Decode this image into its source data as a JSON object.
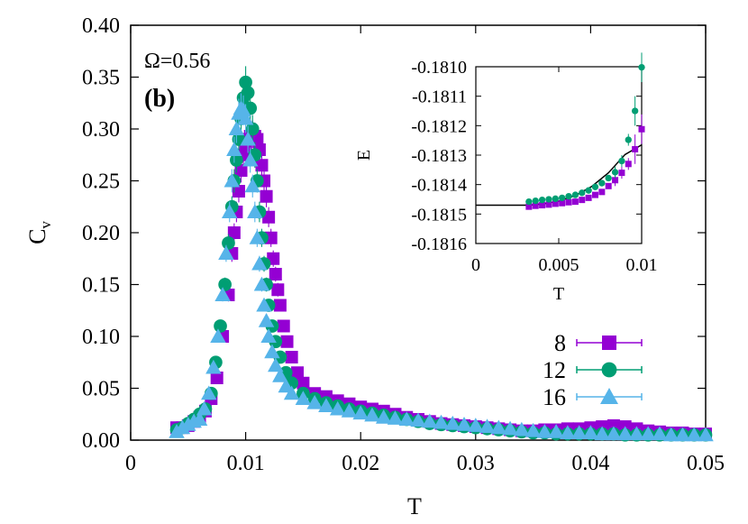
{
  "chart_data": [
    {
      "type": "scatter",
      "annotations": [
        "Ω=0.56",
        "(b)"
      ],
      "xlabel": "T",
      "ylabel": "C",
      "ylabel_sub": "v",
      "xlim": [
        0,
        0.05
      ],
      "ylim": [
        0,
        0.4
      ],
      "xticks": [
        "0",
        "0.01",
        "0.02",
        "0.03",
        "0.04",
        "0.05"
      ],
      "yticks": [
        "0.00",
        "0.05",
        "0.10",
        "0.15",
        "0.20",
        "0.25",
        "0.30",
        "0.35",
        "0.40"
      ],
      "legend_position": "bottom-right",
      "series": [
        {
          "name": "8",
          "color": "#9400d3",
          "marker": "square",
          "x": [
            0.004,
            0.0045,
            0.005,
            0.0055,
            0.006,
            0.0065,
            0.007,
            0.0075,
            0.008,
            0.0085,
            0.0088,
            0.009,
            0.0092,
            0.0094,
            0.0096,
            0.0098,
            0.01,
            0.0102,
            0.0104,
            0.0106,
            0.0108,
            0.011,
            0.0112,
            0.0114,
            0.0116,
            0.0118,
            0.012,
            0.0122,
            0.0124,
            0.0126,
            0.0128,
            0.013,
            0.0133,
            0.0136,
            0.014,
            0.0145,
            0.015,
            0.016,
            0.017,
            0.018,
            0.019,
            0.02,
            0.021,
            0.022,
            0.023,
            0.024,
            0.025,
            0.026,
            0.027,
            0.028,
            0.029,
            0.03,
            0.031,
            0.032,
            0.033,
            0.034,
            0.035,
            0.036,
            0.037,
            0.038,
            0.039,
            0.04,
            0.041,
            0.042,
            0.043,
            0.044,
            0.045,
            0.046,
            0.047,
            0.048,
            0.049,
            0.05
          ],
          "y": [
            0.012,
            0.012,
            0.014,
            0.018,
            0.022,
            0.028,
            0.04,
            0.06,
            0.1,
            0.14,
            0.18,
            0.2,
            0.22,
            0.24,
            0.26,
            0.275,
            0.285,
            0.29,
            0.293,
            0.295,
            0.293,
            0.29,
            0.28,
            0.265,
            0.25,
            0.235,
            0.215,
            0.195,
            0.175,
            0.16,
            0.145,
            0.13,
            0.11,
            0.095,
            0.08,
            0.065,
            0.055,
            0.045,
            0.042,
            0.038,
            0.035,
            0.032,
            0.03,
            0.028,
            0.025,
            0.022,
            0.02,
            0.018,
            0.016,
            0.015,
            0.014,
            0.013,
            0.012,
            0.011,
            0.01,
            0.009,
            0.009,
            0.01,
            0.01,
            0.011,
            0.011,
            0.012,
            0.013,
            0.014,
            0.013,
            0.011,
            0.009,
            0.008,
            0.007,
            0.007,
            0.006,
            0.006
          ]
        },
        {
          "name": "12",
          "color": "#009e73",
          "marker": "circle",
          "x": [
            0.004,
            0.0045,
            0.005,
            0.0055,
            0.006,
            0.0065,
            0.007,
            0.0074,
            0.0078,
            0.0082,
            0.0085,
            0.0088,
            0.009,
            0.0092,
            0.0094,
            0.0096,
            0.0098,
            0.01,
            0.0102,
            0.0104,
            0.0106,
            0.0108,
            0.011,
            0.0112,
            0.0114,
            0.0116,
            0.0118,
            0.012,
            0.0123,
            0.0126,
            0.013,
            0.0135,
            0.014,
            0.015,
            0.016,
            0.017,
            0.018,
            0.019,
            0.02,
            0.021,
            0.022,
            0.023,
            0.024,
            0.025,
            0.026,
            0.027,
            0.028,
            0.029,
            0.03,
            0.031,
            0.032,
            0.033,
            0.034,
            0.035,
            0.036,
            0.037,
            0.038,
            0.039,
            0.04,
            0.041,
            0.042,
            0.043,
            0.044,
            0.045,
            0.046,
            0.047,
            0.048,
            0.049,
            0.05
          ],
          "y": [
            0.01,
            0.012,
            0.016,
            0.02,
            0.025,
            0.03,
            0.045,
            0.075,
            0.11,
            0.15,
            0.19,
            0.225,
            0.25,
            0.27,
            0.29,
            0.31,
            0.33,
            0.345,
            0.335,
            0.32,
            0.3,
            0.275,
            0.25,
            0.22,
            0.195,
            0.17,
            0.15,
            0.13,
            0.11,
            0.095,
            0.08,
            0.065,
            0.055,
            0.045,
            0.04,
            0.036,
            0.033,
            0.03,
            0.028,
            0.026,
            0.024,
            0.022,
            0.02,
            0.018,
            0.016,
            0.015,
            0.014,
            0.013,
            0.012,
            0.011,
            0.01,
            0.009,
            0.008,
            0.007,
            0.007,
            0.006,
            0.006,
            0.006,
            0.006,
            0.006,
            0.006,
            0.005,
            0.005,
            0.005,
            0.005,
            0.005,
            0.005,
            0.005,
            0.005
          ]
        },
        {
          "name": "16",
          "color": "#56b4e9",
          "marker": "triangle",
          "x": [
            0.004,
            0.0045,
            0.005,
            0.0055,
            0.006,
            0.0064,
            0.0068,
            0.0072,
            0.0076,
            0.008,
            0.0083,
            0.0086,
            0.0088,
            0.009,
            0.0092,
            0.0094,
            0.0096,
            0.0098,
            0.01,
            0.0102,
            0.0104,
            0.0106,
            0.0108,
            0.011,
            0.0112,
            0.0114,
            0.0116,
            0.0118,
            0.012,
            0.0123,
            0.0126,
            0.013,
            0.0135,
            0.014,
            0.015,
            0.016,
            0.017,
            0.018,
            0.019,
            0.02,
            0.021,
            0.022,
            0.023,
            0.024,
            0.025,
            0.026,
            0.027,
            0.028,
            0.029,
            0.03,
            0.031,
            0.032,
            0.033,
            0.034,
            0.035,
            0.036,
            0.037,
            0.038,
            0.039,
            0.04,
            0.041,
            0.042,
            0.043,
            0.044,
            0.045,
            0.046,
            0.047,
            0.048,
            0.049,
            0.05
          ],
          "y": [
            0.008,
            0.012,
            0.015,
            0.018,
            0.02,
            0.03,
            0.045,
            0.07,
            0.1,
            0.14,
            0.18,
            0.22,
            0.25,
            0.28,
            0.3,
            0.315,
            0.32,
            0.318,
            0.31,
            0.29,
            0.27,
            0.245,
            0.22,
            0.195,
            0.17,
            0.15,
            0.13,
            0.115,
            0.1,
            0.085,
            0.072,
            0.062,
            0.052,
            0.045,
            0.04,
            0.036,
            0.033,
            0.03,
            0.028,
            0.026,
            0.024,
            0.022,
            0.021,
            0.02,
            0.019,
            0.018,
            0.017,
            0.016,
            0.015,
            0.014,
            0.013,
            0.012,
            0.011,
            0.01,
            0.009,
            0.008,
            0.008,
            0.007,
            0.007,
            0.007,
            0.006,
            0.006,
            0.006,
            0.006,
            0.006,
            0.006,
            0.005,
            0.005,
            0.005,
            0.005
          ]
        }
      ]
    },
    {
      "type": "scatter",
      "xlabel": "T",
      "ylabel": "E",
      "xlim": [
        0,
        0.01
      ],
      "ylim": [
        -0.1816,
        -0.181
      ],
      "xticks": [
        "0",
        "0.005",
        "0.01"
      ],
      "yticks": [
        "-0.1810",
        "-0.1811",
        "-0.1812",
        "-0.1813",
        "-0.1814",
        "-0.1815",
        "-0.1816"
      ],
      "series": [
        {
          "name": "8",
          "color": "#9400d3",
          "marker": "square",
          "x": [
            0.0032,
            0.0036,
            0.004,
            0.0044,
            0.0048,
            0.0052,
            0.0056,
            0.006,
            0.0064,
            0.0068,
            0.0072,
            0.0076,
            0.008,
            0.0084,
            0.0088,
            0.0092,
            0.0096,
            0.01
          ],
          "y": [
            -0.181475,
            -0.181472,
            -0.18147,
            -0.181468,
            -0.181465,
            -0.181463,
            -0.18146,
            -0.181458,
            -0.181452,
            -0.181445,
            -0.181435,
            -0.181425,
            -0.181405,
            -0.181385,
            -0.18136,
            -0.18133,
            -0.18128,
            -0.181212
          ]
        },
        {
          "name": "12",
          "color": "#009e73",
          "marker": "circle",
          "x": [
            0.0032,
            0.0036,
            0.004,
            0.0044,
            0.0048,
            0.0052,
            0.0056,
            0.006,
            0.0064,
            0.0068,
            0.0072,
            0.0076,
            0.008,
            0.0084,
            0.0088,
            0.0092,
            0.0096,
            0.01
          ],
          "y": [
            -0.181458,
            -0.181455,
            -0.181452,
            -0.18145,
            -0.181448,
            -0.181445,
            -0.18144,
            -0.181435,
            -0.181428,
            -0.18142,
            -0.181408,
            -0.181395,
            -0.181378,
            -0.181358,
            -0.18132,
            -0.181248,
            -0.18115,
            -0.181002
          ]
        }
      ],
      "fit_curve": {
        "x": [
          0,
          0.003,
          0.0032,
          0.004,
          0.005,
          0.006,
          0.007,
          0.008,
          0.009,
          0.01
        ],
        "y": [
          -0.18147,
          -0.18147,
          -0.18147,
          -0.181466,
          -0.181456,
          -0.181437,
          -0.181406,
          -0.18136,
          -0.181298,
          -0.181265
        ]
      }
    }
  ]
}
